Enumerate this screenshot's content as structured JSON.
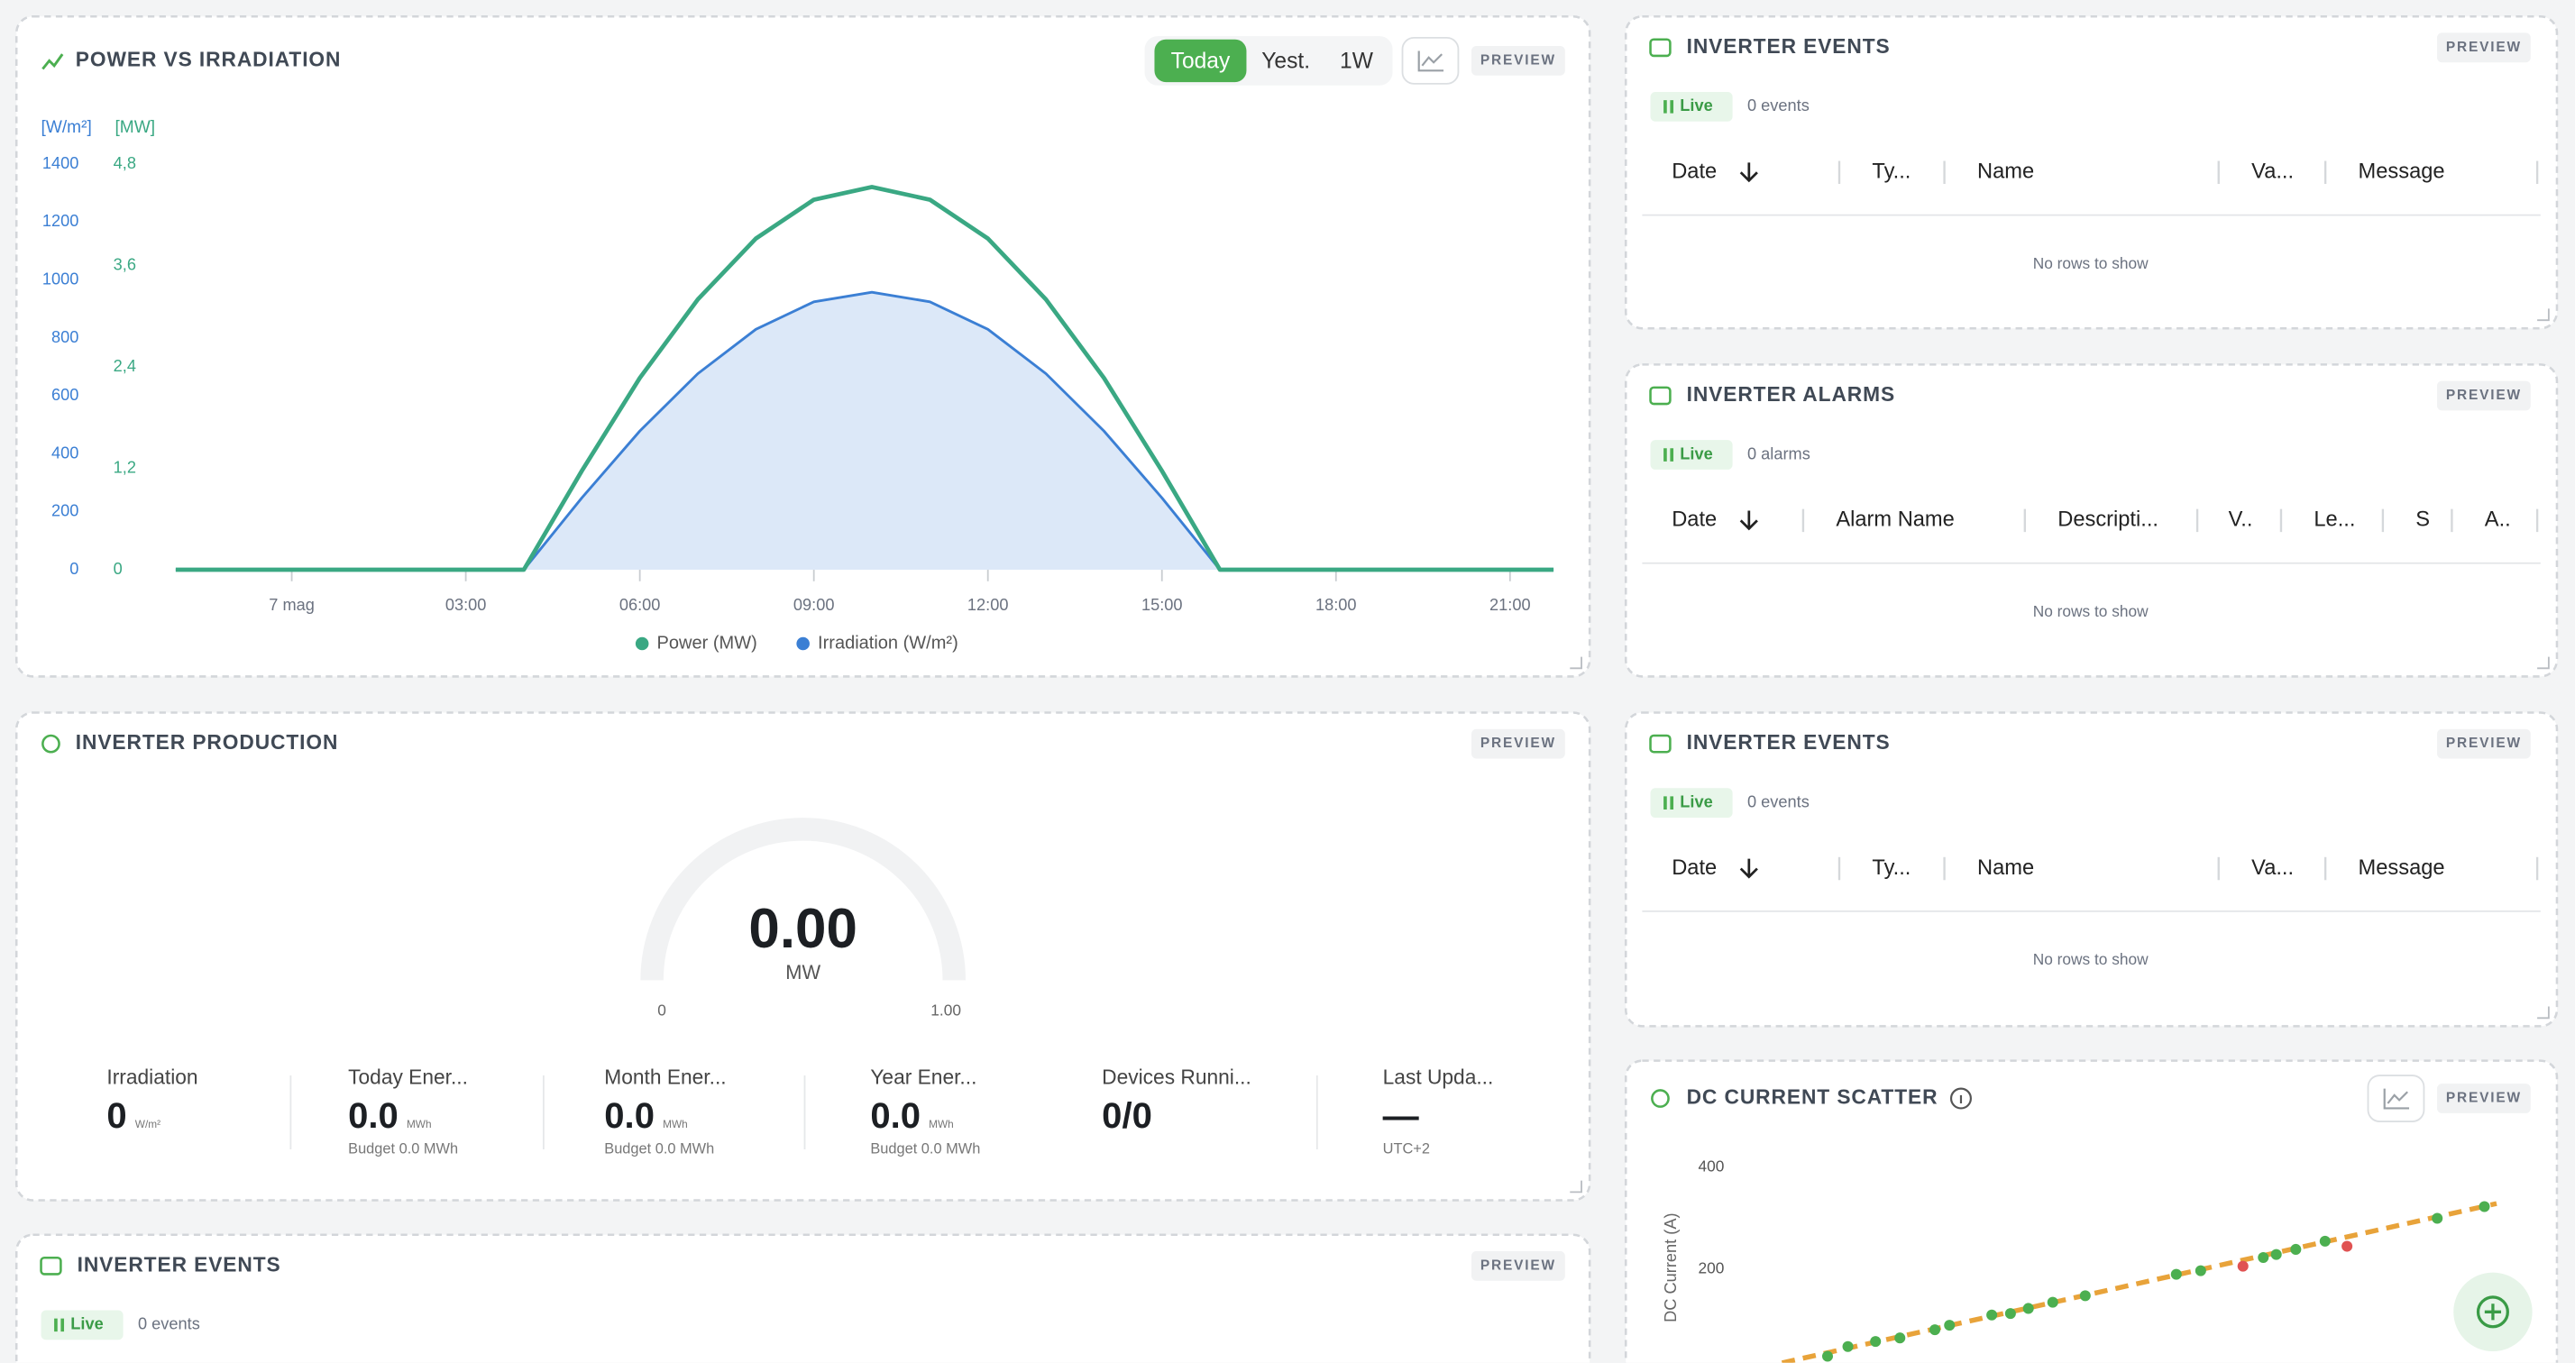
{
  "power_chart": {
    "type": "line",
    "title": "POWER VS IRRADIATION",
    "range_buttons": [
      "Today",
      "Yest.",
      "1W"
    ],
    "badge": "PREVIEW",
    "y_unit": "[W/m²]",
    "y2_unit": "[MW]",
    "x": [
      -2,
      0,
      2,
      4,
      5,
      6,
      7,
      8,
      9,
      10,
      11,
      12,
      13,
      14,
      15,
      16,
      18,
      20,
      21.75
    ],
    "xlim": [
      -2,
      21.75
    ],
    "xticks": [
      {
        "value": 0,
        "label": "7 mag"
      },
      {
        "value": 3,
        "label": "03:00"
      },
      {
        "value": 6,
        "label": "06:00"
      },
      {
        "value": 9,
        "label": "09:00"
      },
      {
        "value": 12,
        "label": "12:00"
      },
      {
        "value": 15,
        "label": "15:00"
      },
      {
        "value": 18,
        "label": "18:00"
      },
      {
        "value": 21,
        "label": "21:00"
      }
    ],
    "ylim": [
      0,
      1400
    ],
    "yticks": [
      0,
      200,
      400,
      600,
      800,
      1000,
      1200,
      1400
    ],
    "y2lim": [
      0,
      4.8
    ],
    "y2ticks": [
      0,
      {
        "value": 1.2,
        "label": "1,2"
      },
      {
        "value": 2.4,
        "label": "2,4"
      },
      {
        "value": 3.6,
        "label": "3,6"
      },
      {
        "value": 4.8,
        "label": "4,8"
      }
    ],
    "series": [
      {
        "name": "Power (MW)",
        "color": "#3aa883",
        "axis": "y2",
        "values": [
          0,
          0,
          0,
          0,
          1.17,
          2.27,
          3.2,
          3.92,
          4.38,
          4.53,
          4.38,
          3.92,
          3.2,
          2.27,
          1.17,
          0,
          0,
          0,
          0
        ]
      },
      {
        "name": "Irradiation (W/m²)",
        "color": "#3b7fd4",
        "fill": "#dce8f8",
        "values": [
          0,
          0,
          0,
          0,
          248,
          479,
          677,
          830,
          925,
          958,
          925,
          830,
          677,
          479,
          248,
          0,
          0,
          0,
          0
        ]
      }
    ]
  },
  "production": {
    "title": "INVERTER PRODUCTION",
    "badge": "PREVIEW",
    "gauge": {
      "value": "0.00",
      "unit": "MW",
      "min": "0",
      "max": "1.00"
    },
    "stats": [
      {
        "label": "Irradiation",
        "value": "0",
        "unit": "W/m²"
      },
      {
        "label": "Today Ener...",
        "value": "0.0",
        "unit": "MWh",
        "sub": "Budget 0.0 MWh"
      },
      {
        "label": "Month Ener...",
        "value": "0.0",
        "unit": "MWh",
        "sub": "Budget 0.0 MWh"
      },
      {
        "label": "Year Ener...",
        "value": "0.0",
        "unit": "MWh",
        "sub": "Budget 0.0 MWh"
      },
      {
        "label": "Devices Runni...",
        "value": "0/0"
      },
      {
        "label": "Last Upda...",
        "value": "—",
        "sub": "UTC+2"
      }
    ]
  },
  "event_panels": [
    {
      "title": "INVERTER EVENTS",
      "badge": "PREVIEW",
      "status": "Live",
      "count": "0 events",
      "columns": [
        "Date",
        "Ty...",
        "Name",
        "Va...",
        "Message"
      ],
      "empty": "No rows to show"
    },
    {
      "title": "INVERTER ALARMS",
      "badge": "PREVIEW",
      "status": "Live",
      "count": "0 alarms",
      "columns": [
        "Date",
        "Alarm Name",
        "Descripti...",
        "V..",
        "Le...",
        "S",
        "A.."
      ],
      "empty": "No rows to show"
    },
    {
      "title": "INVERTER EVENTS",
      "badge": "PREVIEW",
      "status": "Live",
      "count": "0 events",
      "columns": [
        "Date",
        "Ty...",
        "Name",
        "Va...",
        "Message"
      ],
      "empty": "No rows to show"
    },
    {
      "title": "INVERTER EVENTS",
      "badge": "PREVIEW",
      "status": "Live",
      "count": "0 events"
    }
  ],
  "scatter": {
    "type": "scatter",
    "title": "DC CURRENT SCATTER",
    "badge": "PREVIEW",
    "y_label": "DC Current (A)",
    "ylim": [
      0,
      440
    ],
    "yticks": [
      200,
      400
    ],
    "xlim": [
      0,
      100
    ],
    "x": [
      12.7,
      15.2,
      18.6,
      21.6,
      25.9,
      27.7,
      32.9,
      35.2,
      37.4,
      40.4,
      44.4,
      55.6,
      58.6,
      63.8,
      66.3,
      67.9,
      70.3,
      73.9,
      76.6,
      87.7,
      93.5
    ],
    "values": [
      29,
      48,
      58,
      65,
      81,
      90,
      110,
      113,
      123,
      135,
      148,
      190,
      197,
      206,
      223,
      229,
      239,
      255,
      245,
      300,
      323
    ],
    "colors": [
      "#4caf50",
      "#4caf50",
      "#4caf50",
      "#4caf50",
      "#4caf50",
      "#4caf50",
      "#4caf50",
      "#4caf50",
      "#4caf50",
      "#4caf50",
      "#4caf50",
      "#4caf50",
      "#4caf50",
      "#e05252",
      "#4caf50",
      "#4caf50",
      "#4caf50",
      "#4caf50",
      "#e05252",
      "#4caf50",
      "#4caf50"
    ],
    "trend": {
      "color": "#e8a33a",
      "x": [
        7.1,
        95
      ],
      "values": [
        16,
        329
      ]
    }
  }
}
